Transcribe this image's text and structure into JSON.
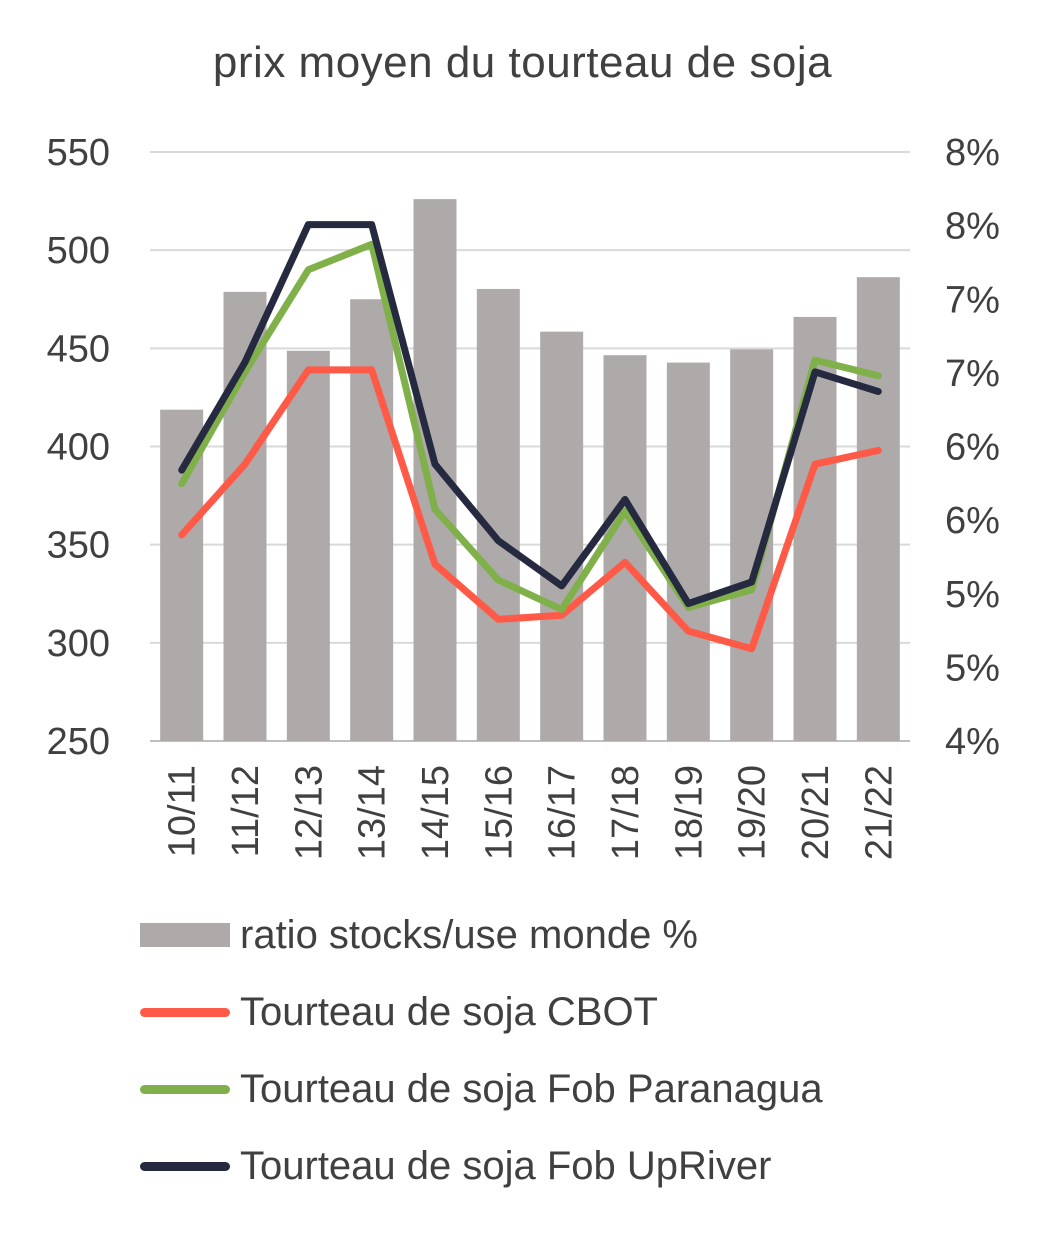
{
  "chart_data": {
    "type": "bar",
    "title": "prix moyen du tourteau de soja",
    "categories": [
      "10/11",
      "11/12",
      "12/13",
      "13/14",
      "14/15",
      "15/16",
      "16/17",
      "17/18",
      "18/19",
      "19/20",
      "20/21",
      "21/22"
    ],
    "y_left": {
      "ylim": [
        250,
        550
      ],
      "ticks": [
        "550",
        "500",
        "450",
        "400",
        "350",
        "300",
        "250"
      ]
    },
    "y_right": {
      "ylim": [
        4,
        8
      ],
      "tick_labels": [
        "8%",
        "8%",
        "7%",
        "7%",
        "6%",
        "6%",
        "5%",
        "5%",
        "4%"
      ]
    },
    "grid": true,
    "legend_position": "bottom",
    "series": [
      {
        "name": "ratio stocks/use monde %",
        "kind": "bar",
        "axis": "right",
        "color": "#aeaaaa",
        "values": [
          6.25,
          7.05,
          6.65,
          7.0,
          7.68,
          7.07,
          6.78,
          6.62,
          6.57,
          6.66,
          6.88,
          7.15
        ]
      },
      {
        "name": "Tourteau de soja CBOT",
        "kind": "line",
        "axis": "left",
        "color": "#ff5a47",
        "values": [
          355,
          391,
          439,
          439,
          340,
          312,
          314,
          341,
          306,
          297,
          391,
          398
        ]
      },
      {
        "name": "Tourteau de soja Fob Paranagua",
        "kind": "line",
        "axis": "left",
        "color": "#80b04a",
        "values": [
          381,
          438,
          490,
          503,
          368,
          332,
          317,
          367,
          318,
          327,
          444,
          436
        ]
      },
      {
        "name": "Tourteau de soja Fob UpRiver",
        "kind": "line",
        "axis": "left",
        "color": "#262a40",
        "values": [
          388,
          443,
          513,
          513,
          391,
          352,
          329,
          373,
          320,
          331,
          438,
          428
        ]
      }
    ]
  }
}
